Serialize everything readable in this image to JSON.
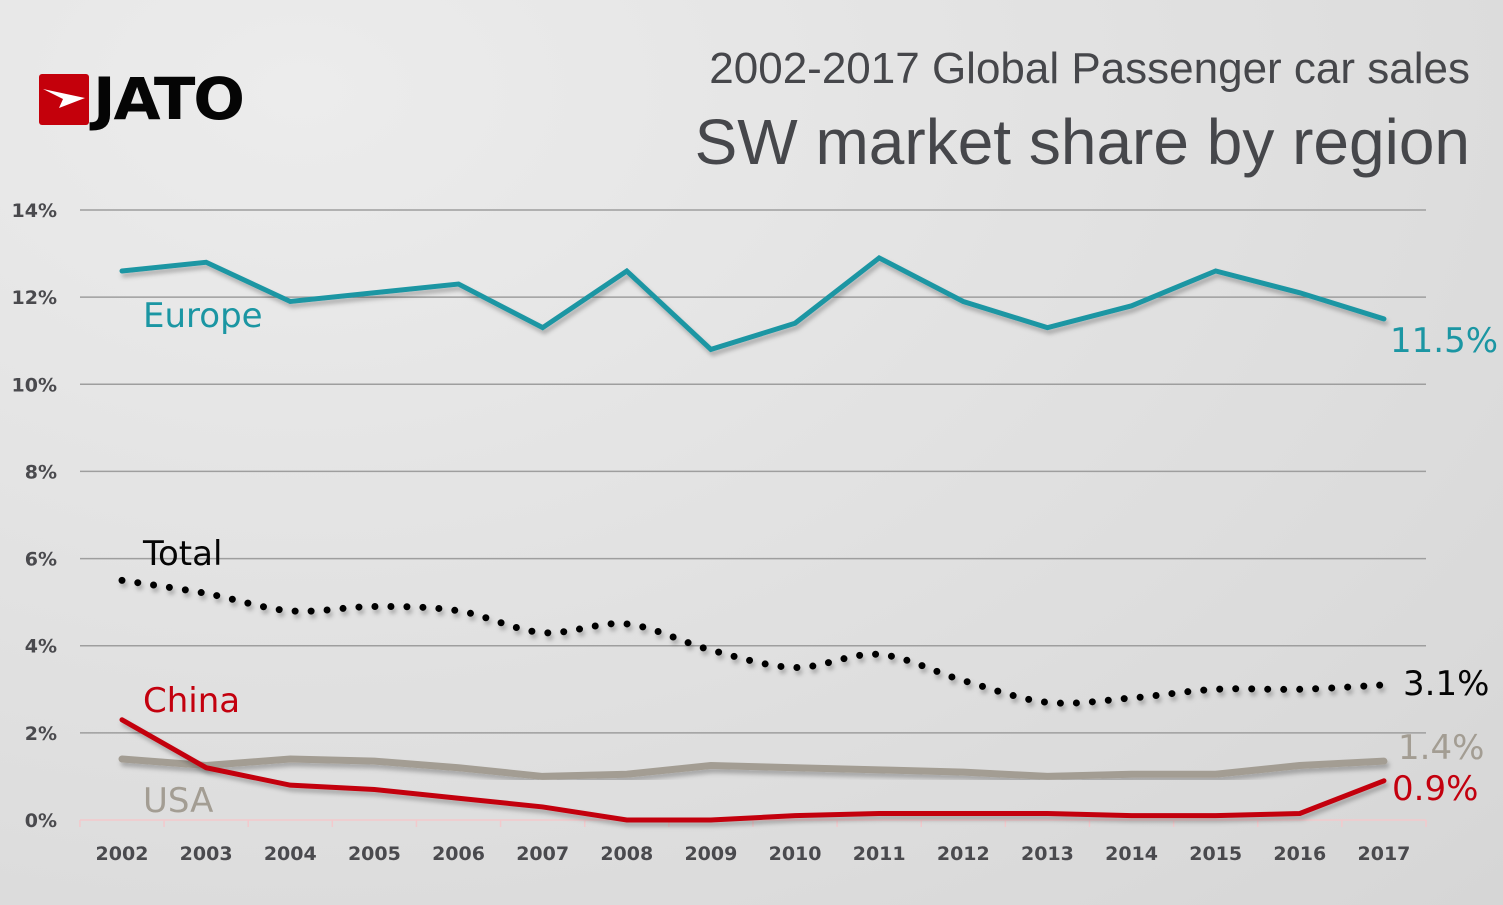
{
  "logo": {
    "text": "JATO",
    "icon": "jato-arrow-icon"
  },
  "chart_data": {
    "type": "line",
    "title": "2002-2017 Global Passenger car sales",
    "subtitle": "SW market share by region",
    "xlabel": "",
    "ylabel": "",
    "x": [
      "2002",
      "2003",
      "2004",
      "2005",
      "2006",
      "2007",
      "2008",
      "2009",
      "2010",
      "2011",
      "2012",
      "2013",
      "2014",
      "2015",
      "2016",
      "2017"
    ],
    "ylim": [
      0,
      14
    ],
    "yticks": [
      "0%",
      "2%",
      "4%",
      "6%",
      "8%",
      "10%",
      "12%",
      "14%"
    ],
    "ytick_values": [
      0,
      2,
      4,
      6,
      8,
      10,
      12,
      14
    ],
    "grid": true,
    "legend": "inline",
    "series": [
      {
        "name": "Europe",
        "color": "#1b96a3",
        "style": "solid",
        "end_label": "11.5%",
        "values": [
          12.6,
          12.8,
          11.9,
          12.1,
          12.3,
          11.3,
          12.6,
          10.8,
          11.4,
          12.9,
          11.9,
          11.3,
          11.8,
          12.6,
          12.1,
          11.5
        ]
      },
      {
        "name": "Total",
        "color": "#050505",
        "style": "dotted",
        "end_label": "3.1%",
        "values": [
          5.5,
          5.2,
          4.8,
          4.9,
          4.8,
          4.3,
          4.5,
          3.9,
          3.5,
          3.8,
          3.2,
          2.7,
          2.8,
          3.0,
          3.0,
          3.1
        ]
      },
      {
        "name": "China",
        "color": "#c3000e",
        "style": "solid",
        "end_label": "0.9%",
        "values": [
          2.3,
          1.2,
          0.8,
          0.7,
          0.5,
          0.3,
          0.0,
          0.0,
          0.1,
          0.15,
          0.15,
          0.15,
          0.1,
          0.1,
          0.15,
          0.9
        ]
      },
      {
        "name": "USA",
        "color": "#a39d93",
        "style": "solid",
        "end_label": "1.4%",
        "values": [
          1.4,
          1.25,
          1.4,
          1.35,
          1.2,
          1.0,
          1.05,
          1.25,
          1.2,
          1.15,
          1.1,
          1.0,
          1.05,
          1.05,
          1.25,
          1.35
        ]
      }
    ]
  }
}
